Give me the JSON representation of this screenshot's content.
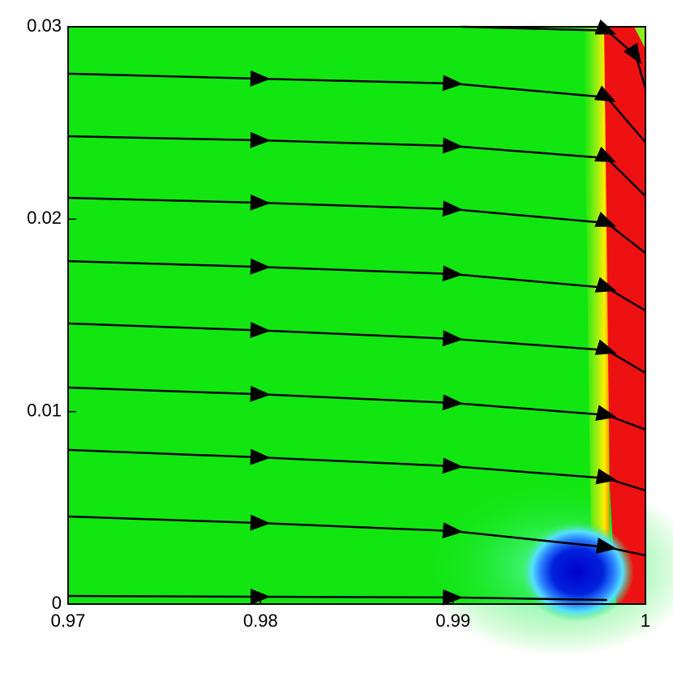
{
  "chart_data": {
    "type": "streamline",
    "xlim": [
      0.97,
      1
    ],
    "ylim": [
      0,
      0.03
    ],
    "xticks": [
      0.97,
      0.98,
      0.99,
      1
    ],
    "yticks": [
      0,
      0.01,
      0.02,
      0.03
    ],
    "line_color": "#000000",
    "series": [
      {
        "x": [
          0.9905,
          0.998,
          0.9995,
          1
        ],
        "values": [
          0.03,
          0.0298,
          0.0285,
          0.0268
        ]
      },
      {
        "x": [
          0.97,
          0.98,
          0.99,
          0.998,
          1
        ],
        "values": [
          0.02756,
          0.0273,
          0.02705,
          0.02633,
          0.024
        ]
      },
      {
        "x": [
          0.97,
          0.98,
          0.99,
          0.998,
          1
        ],
        "values": [
          0.02431,
          0.0241,
          0.0238,
          0.02317,
          0.0212
        ]
      },
      {
        "x": [
          0.97,
          0.98,
          0.99,
          0.998,
          1
        ],
        "values": [
          0.02111,
          0.02085,
          0.02052,
          0.0198,
          0.01824
        ]
      },
      {
        "x": [
          0.97,
          0.98,
          0.99,
          0.998,
          1
        ],
        "values": [
          0.01782,
          0.01752,
          0.01715,
          0.01643,
          0.01525
        ]
      },
      {
        "x": [
          0.97,
          0.98,
          0.99,
          0.998,
          1
        ],
        "values": [
          0.01458,
          0.01422,
          0.01378,
          0.01319,
          0.01201
        ]
      },
      {
        "x": [
          0.97,
          0.98,
          0.99,
          0.998,
          1
        ],
        "values": [
          0.01125,
          0.0109,
          0.01045,
          0.00982,
          0.00906
        ]
      },
      {
        "x": [
          0.97,
          0.98,
          0.99,
          0.998,
          1
        ],
        "values": [
          0.00801,
          0.00762,
          0.00716,
          0.00653,
          0.0059
        ]
      },
      {
        "x": [
          0.97,
          0.98,
          0.99,
          0.998,
          1
        ],
        "values": [
          0.00455,
          0.00421,
          0.00379,
          0.00295,
          0.00253
        ]
      },
      {
        "x": [
          0.97,
          0.98,
          0.99,
          0.998
        ],
        "values": [
          0.00042,
          0.00038,
          0.00034,
          0.00021
        ]
      }
    ]
  }
}
